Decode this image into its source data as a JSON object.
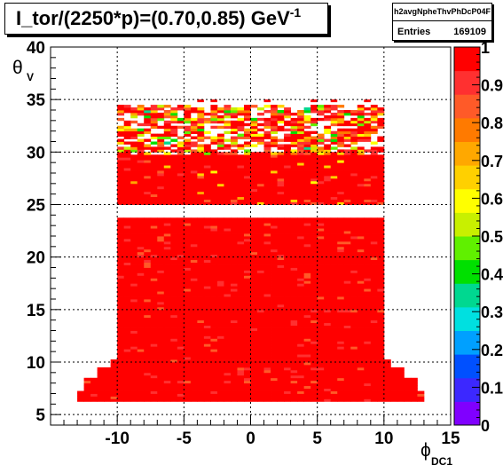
{
  "chart_data": {
    "type": "heatmap",
    "title_main": "I_tor/(2250*p)=(0.70,0.85) GeV",
    "title_exp": "-1",
    "stats": {
      "name": "h2avgNpheThvPhDcP04F",
      "entries_label": "Entries",
      "entries_value": "169109"
    },
    "xlabel": "ϕ",
    "xlabel_sub": "DC1",
    "ylabel": "θ",
    "ylabel_sub": "V",
    "xlim": [
      -15,
      15
    ],
    "ylim": [
      4,
      40
    ],
    "zlim": [
      0,
      1
    ],
    "x_ticks": [
      -10,
      -5,
      0,
      5,
      10,
      15
    ],
    "x_tick_labels": [
      "-10",
      "-5",
      "0",
      "5",
      "10",
      "15"
    ],
    "y_ticks": [
      5,
      10,
      15,
      20,
      25,
      30,
      35,
      40
    ],
    "y_tick_labels": [
      "5",
      "10",
      "15",
      "20",
      "25",
      "30",
      "35",
      "40"
    ],
    "z_ticks": [
      0,
      0.1,
      0.2,
      0.3,
      0.4,
      0.5,
      0.6,
      0.7,
      0.8,
      0.9,
      1
    ],
    "z_tick_labels": [
      "0",
      "0.1",
      "0.2",
      "0.3",
      "0.4",
      "0.5",
      "0.6",
      "0.7",
      "0.8",
      "0.9",
      "1"
    ],
    "grid": true,
    "bin_width_x": 0.5,
    "bin_height_y": 0.25,
    "regions": [
      {
        "y_from": 6.25,
        "y_to": 7.25,
        "x_from": -13,
        "x_to": 13,
        "dominant_value": 0.97
      },
      {
        "y_from": 7.25,
        "y_to": 8.5,
        "x_from": -12.5,
        "x_to": 12.5,
        "dominant_value": 0.97
      },
      {
        "y_from": 8.5,
        "y_to": 9.5,
        "x_from": -11.5,
        "x_to": 11.5,
        "dominant_value": 0.97
      },
      {
        "y_from": 9.5,
        "y_to": 10.25,
        "x_from": -10.5,
        "x_to": 10.5,
        "dominant_value": 0.97
      },
      {
        "y_from": 10.25,
        "y_to": 23.75,
        "x_from": -10,
        "x_to": 10,
        "dominant_value": 0.96
      },
      {
        "y_from": 25,
        "y_to": 29.75,
        "x_from": -10,
        "x_to": 10,
        "dominant_value": 0.93
      },
      {
        "y_from": 29.75,
        "y_to": 34.5,
        "x_from": -10,
        "x_to": 10,
        "dominant_value": 0.85,
        "sparse": true
      }
    ],
    "gap": {
      "y_from": 23.75,
      "y_to": 25,
      "note": "empty band"
    }
  },
  "palette_colors": [
    "#8000ff",
    "#3c28ff",
    "#0050ff",
    "#00a0ff",
    "#00e0e0",
    "#00d890",
    "#00e000",
    "#60f000",
    "#c8f000",
    "#ffff00",
    "#ffd000",
    "#ffa800",
    "#ff7a00",
    "#ff5a28",
    "#ff3030",
    "#ff0000"
  ]
}
